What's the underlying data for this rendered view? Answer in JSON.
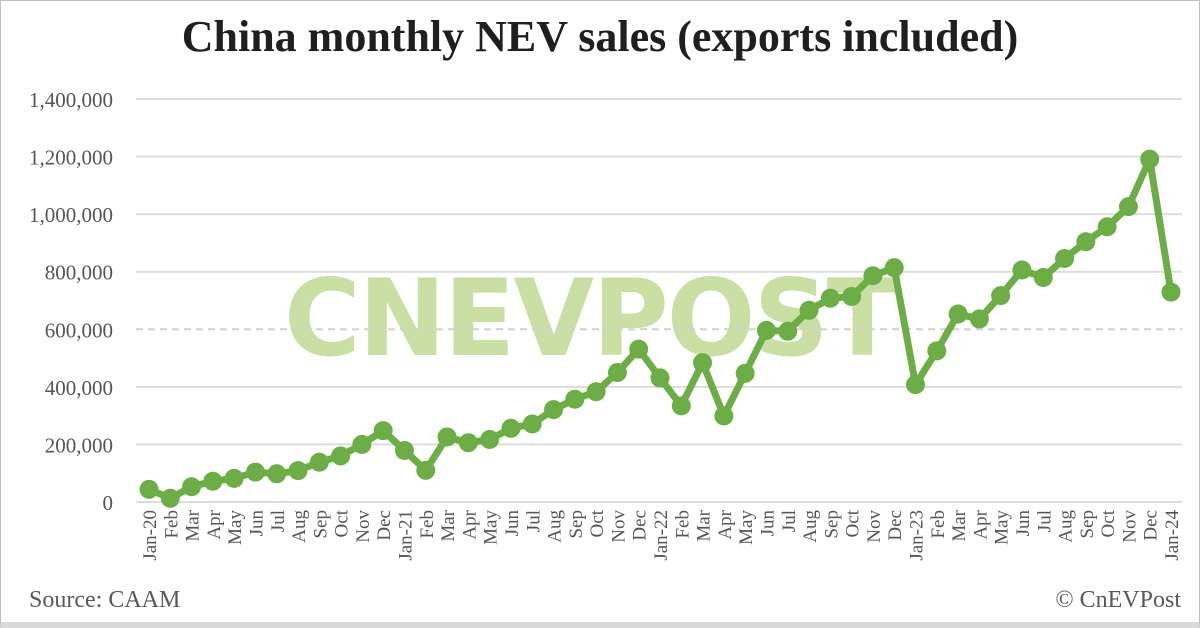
{
  "title": "China monthly NEV sales (exports included)",
  "watermark": "CNEVPOST",
  "footer": {
    "source": "Source: CAAM",
    "copyright": "© CnEVPost"
  },
  "colors": {
    "line": "#6CAD45",
    "marker": "#6CAD45",
    "watermark": "#C9DFA3",
    "grid": "#DCDCDC",
    "dashed_grid": "#D2D2D2",
    "axis_text": "#555555",
    "title_text": "#1F1F1F",
    "footer_text": "#595959",
    "background": "#FFFFFF"
  },
  "chart_data": {
    "type": "line",
    "title": "China monthly NEV sales (exports included)",
    "xlabel": "",
    "ylabel": "",
    "ylim": [
      0,
      1400000
    ],
    "ytick_step": 200000,
    "ytick_labels": [
      "0",
      "200,000",
      "400,000",
      "600,000",
      "800,000",
      "1,000,000",
      "1,200,000",
      "1,400,000"
    ],
    "grid": "horizontal",
    "grid_note": "600,000 gridline rendered dashed, all others solid",
    "legend": "none",
    "marker": "circle",
    "categories": [
      "Jan-20",
      "Feb",
      "Mar",
      "Apr",
      "May",
      "Jun",
      "Jul",
      "Aug",
      "Sep",
      "Oct",
      "Nov",
      "Dec",
      "Jan-21",
      "Feb",
      "Mar",
      "Apr",
      "May",
      "Jun",
      "Jul",
      "Aug",
      "Sep",
      "Oct",
      "Nov",
      "Dec",
      "Jan-22",
      "Feb",
      "Mar",
      "Apr",
      "May",
      "Jun",
      "Jul",
      "Aug",
      "Sep",
      "Oct",
      "Nov",
      "Dec",
      "Jan-23",
      "Feb",
      "Mar",
      "Apr",
      "May",
      "Jun",
      "Jul",
      "Aug",
      "Sep",
      "Oct",
      "Nov",
      "Dec",
      "Jan-24"
    ],
    "series": [
      {
        "name": "Monthly NEV sales",
        "values": [
          44000,
          12900,
          53000,
          72000,
          82000,
          104000,
          98000,
          109000,
          138000,
          160000,
          200000,
          248000,
          179000,
          110000,
          226000,
          206000,
          217000,
          256000,
          271000,
          321000,
          357000,
          383000,
          450000,
          531000,
          431000,
          334000,
          484000,
          299000,
          447000,
          596000,
          593000,
          666000,
          708000,
          714000,
          786000,
          814000,
          408000,
          525000,
          653000,
          636000,
          717000,
          806000,
          780000,
          846000,
          904000,
          956000,
          1026000,
          1191000,
          729000
        ]
      }
    ]
  }
}
